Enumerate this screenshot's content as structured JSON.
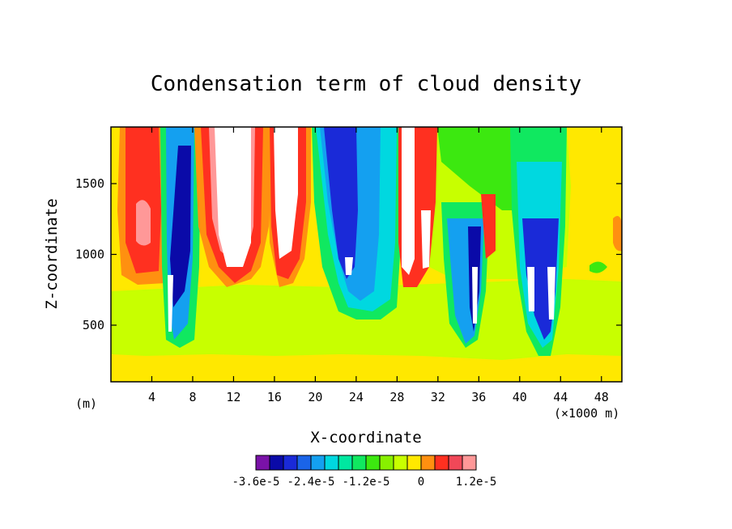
{
  "chart_data": {
    "type": "heatmap",
    "title": "Condensation term of cloud density",
    "xlabel": "X-coordinate",
    "ylabel": "Z-coordinate",
    "x_unit_left": "(m)",
    "x_unit_right": "(×1000 m)",
    "xlim": [
      0,
      50
    ],
    "ylim": [
      100,
      1900
    ],
    "x_ticks": [
      "4",
      "8",
      "12",
      "16",
      "20",
      "24",
      "28",
      "32",
      "36",
      "40",
      "44",
      "48"
    ],
    "x_tick_values": [
      4,
      8,
      12,
      16,
      20,
      24,
      28,
      32,
      36,
      40,
      44,
      48
    ],
    "y_ticks": [
      "500",
      "1000",
      "1500"
    ],
    "y_tick_values": [
      500,
      1000,
      1500
    ],
    "colorbar": {
      "levels": [
        -3.6e-05,
        -3.3e-05,
        -3e-05,
        -2.7e-05,
        -2.4e-05,
        -2.1e-05,
        -1.8e-05,
        -1.5e-05,
        -1.2e-05,
        -9e-06,
        -6e-06,
        -3e-06,
        0,
        3e-06,
        6e-06,
        9e-06
      ],
      "colors": [
        "#7a12a8",
        "#0a0aa8",
        "#1a2ad8",
        "#1a64e8",
        "#14a0f0",
        "#00d8e0",
        "#00e8a0",
        "#10e860",
        "#3ce810",
        "#88f000",
        "#c8ff00",
        "#ffe800",
        "#ff9010",
        "#ff3020",
        "#f04858",
        "#ff9898"
      ],
      "tick_labels": [
        "-3.6e-5",
        "-2.4e-5",
        "-1.2e-5",
        "0",
        "1.2e-5"
      ],
      "tick_values": [
        -3.6e-05,
        -2.4e-05,
        -1.2e-05,
        0,
        1.2e-05
      ]
    },
    "features": [
      {
        "x": 3.5,
        "z": 1350,
        "value": 1.2e-05
      },
      {
        "x": 6.3,
        "z": 800,
        "value": -3e-05
      },
      {
        "x": 12,
        "z": 1500,
        "value": 1.5e-05
      },
      {
        "x": 17,
        "z": 1400,
        "value": 1.5e-05
      },
      {
        "x": 22.5,
        "z": 1300,
        "value": -2.4e-05
      },
      {
        "x": 26,
        "z": 1100,
        "value": -1.5e-05
      },
      {
        "x": 29.5,
        "z": 1300,
        "value": 1.5e-05
      },
      {
        "x": 35.3,
        "z": 700,
        "value": -3.3e-05
      },
      {
        "x": 41,
        "z": 700,
        "value": -3.3e-05
      },
      {
        "x": 43,
        "z": 700,
        "value": -3.3e-05
      },
      {
        "x": 46.5,
        "z": 1200,
        "value": 0.0
      }
    ]
  }
}
